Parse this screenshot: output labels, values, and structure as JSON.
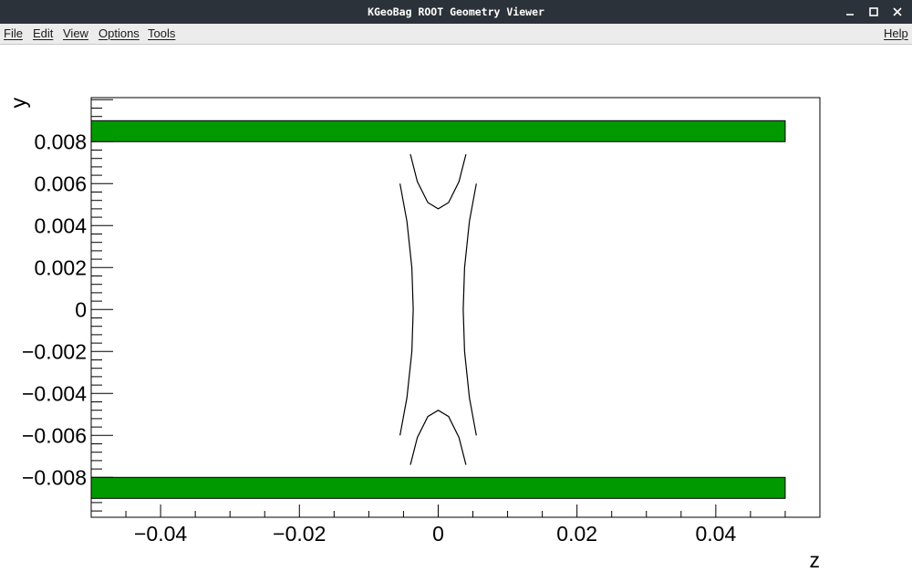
{
  "window": {
    "title": "KGeoBag ROOT Geometry Viewer",
    "controls": [
      "minimize-icon",
      "maximize-icon",
      "close-icon"
    ]
  },
  "menu": {
    "file": "File",
    "edit": "Edit",
    "view": "View",
    "options": "Options",
    "tools": "Tools",
    "help": "Help"
  },
  "chart_data": {
    "type": "geometry-plot",
    "xlabel": "z",
    "ylabel": "y",
    "xlim": [
      -0.05,
      0.055
    ],
    "ylim": [
      -0.0099,
      0.0101
    ],
    "x_ticks": [
      {
        "v": -0.04,
        "label": "−0.04"
      },
      {
        "v": -0.02,
        "label": "−0.02"
      },
      {
        "v": 0,
        "label": "0"
      },
      {
        "v": 0.02,
        "label": "0.02"
      },
      {
        "v": 0.04,
        "label": "0.04"
      }
    ],
    "y_ticks": [
      {
        "v": 0.008,
        "label": "0.008"
      },
      {
        "v": 0.006,
        "label": "0.006"
      },
      {
        "v": 0.004,
        "label": "0.004"
      },
      {
        "v": 0.002,
        "label": "0.002"
      },
      {
        "v": 0,
        "label": "0"
      },
      {
        "v": -0.002,
        "label": "−0.002"
      },
      {
        "v": -0.004,
        "label": "−0.004"
      },
      {
        "v": -0.006,
        "label": "−0.006"
      },
      {
        "v": -0.008,
        "label": "−0.008"
      }
    ],
    "fill_color": "#009900",
    "edge_color": "#000000",
    "rectangles": [
      {
        "z": [
          -0.05,
          0.05
        ],
        "y": [
          0.008,
          0.009
        ]
      },
      {
        "z": [
          -0.05,
          0.05
        ],
        "y": [
          -0.009,
          -0.008
        ]
      }
    ],
    "curves": [
      {
        "points": [
          [
            -0.0055,
            0.006
          ],
          [
            -0.0045,
            0.0042
          ],
          [
            -0.0038,
            0.002
          ],
          [
            -0.0036,
            0
          ],
          [
            -0.0038,
            -0.002
          ],
          [
            -0.0045,
            -0.0042
          ],
          [
            -0.0055,
            -0.006
          ]
        ]
      },
      {
        "points": [
          [
            0.0055,
            0.006
          ],
          [
            0.0045,
            0.0042
          ],
          [
            0.0038,
            0.002
          ],
          [
            0.0036,
            0
          ],
          [
            0.0038,
            -0.002
          ],
          [
            0.0045,
            -0.0042
          ],
          [
            0.0055,
            -0.006
          ]
        ]
      },
      {
        "points": [
          [
            -0.004,
            0.0074
          ],
          [
            -0.003,
            0.0061
          ],
          [
            -0.0015,
            0.0051
          ],
          [
            0,
            0.0048
          ],
          [
            0.0015,
            0.0051
          ],
          [
            0.003,
            0.0061
          ],
          [
            0.004,
            0.0074
          ]
        ]
      },
      {
        "points": [
          [
            -0.004,
            -0.0074
          ],
          [
            -0.003,
            -0.0061
          ],
          [
            -0.0015,
            -0.0051
          ],
          [
            0,
            -0.0048
          ],
          [
            0.0015,
            -0.0051
          ],
          [
            0.003,
            -0.0061
          ],
          [
            0.004,
            -0.0074
          ]
        ]
      }
    ]
  }
}
